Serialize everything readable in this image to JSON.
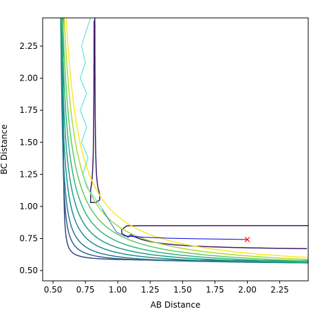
{
  "chart_data": {
    "type": "contour",
    "xlabel": "AB Distance",
    "ylabel": "BC Distance",
    "xlim": [
      0.42,
      2.47
    ],
    "ylim": [
      0.42,
      2.47
    ],
    "xticks": [
      "0.50",
      "0.75",
      "1.00",
      "1.25",
      "1.50",
      "1.75",
      "2.00",
      "2.25"
    ],
    "yticks": [
      "0.50",
      "0.75",
      "1.00",
      "1.25",
      "1.50",
      "1.75",
      "2.00",
      "2.25"
    ],
    "contour_levels": [
      {
        "color": "#3b1c6b",
        "x_asym": 0.65,
        "y_asym": 0.65,
        "saddle": 0.83
      },
      {
        "color": "#33477f",
        "x_asym": 0.575,
        "y_asym": 0.575,
        "k": 0.3
      },
      {
        "color": "#2d5f8a",
        "x_asym": 0.56,
        "y_asym": 0.56,
        "k": 0.42
      },
      {
        "color": "#27768e",
        "x_asym": 0.545,
        "y_asym": 0.545,
        "k": 0.52
      },
      {
        "color": "#1f8a8c",
        "x_asym": 0.535,
        "y_asym": 0.535,
        "k": 0.62
      },
      {
        "color": "#1e9b88",
        "x_asym": 0.525,
        "y_asym": 0.525,
        "k": 0.71
      },
      {
        "color": "#2fb47c",
        "x_asym": 0.515,
        "y_asym": 0.515,
        "k": 0.8
      },
      {
        "color": "#5ec962",
        "x_asym": 0.505,
        "y_asym": 0.505,
        "k": 0.88
      },
      {
        "color": "#a8db34",
        "x_asym": 0.497,
        "y_asym": 0.497,
        "k": 0.96
      },
      {
        "color": "#fde725",
        "x_asym": 0.49,
        "y_asym": 0.49,
        "k": 1.06
      }
    ],
    "trajectory_reactant": [
      [
        0.79,
        2.47
      ],
      [
        0.75,
        2.35
      ],
      [
        0.72,
        2.25
      ],
      [
        0.75,
        2.12
      ],
      [
        0.71,
        2.0
      ],
      [
        0.76,
        1.88
      ],
      [
        0.71,
        1.75
      ],
      [
        0.76,
        1.62
      ],
      [
        0.72,
        1.5
      ],
      [
        0.77,
        1.38
      ],
      [
        0.73,
        1.25
      ],
      [
        0.76,
        1.15
      ],
      [
        0.82,
        1.07
      ],
      [
        0.88,
        0.98
      ],
      [
        0.94,
        0.88
      ],
      [
        0.99,
        0.8
      ],
      [
        1.05,
        0.77
      ],
      [
        1.2,
        0.76
      ],
      [
        1.4,
        0.752
      ],
      [
        1.6,
        0.748
      ],
      [
        1.8,
        0.745
      ],
      [
        2.0,
        0.742
      ]
    ],
    "end_point": {
      "x": 2.0,
      "y": 0.742,
      "marker": "x",
      "color": "#ff0000"
    }
  }
}
